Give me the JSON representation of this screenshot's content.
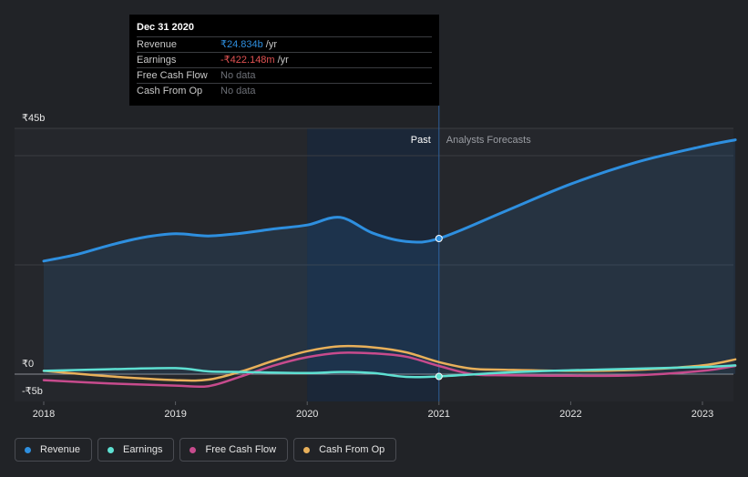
{
  "chart_data": {
    "type": "line",
    "title": "",
    "xlabel": "",
    "ylabel": "",
    "ylim": [
      -5,
      45
    ],
    "xlim": [
      2018,
      2023.25
    ],
    "x_ticks": [
      {
        "value": 2018,
        "label": "2018"
      },
      {
        "value": 2019,
        "label": "2019"
      },
      {
        "value": 2020,
        "label": "2020"
      },
      {
        "value": 2021,
        "label": "2021"
      },
      {
        "value": 2022,
        "label": "2022"
      },
      {
        "value": 2023,
        "label": "2023"
      }
    ],
    "y_ticks": [
      {
        "value": 45,
        "label": "₹45b"
      },
      {
        "value": 0,
        "label": "₹0"
      },
      {
        "value": -5,
        "label": "-₹5b"
      }
    ],
    "past_label": "Past",
    "forecast_label": "Analysts Forecasts",
    "divider_x": 2021,
    "highlight_start": 2020,
    "series": [
      {
        "name": "Revenue",
        "color": "#2e8fdf",
        "x": [
          2018,
          2018.25,
          2018.5,
          2018.75,
          2019,
          2019.25,
          2019.5,
          2019.75,
          2020,
          2020.25,
          2020.5,
          2020.75,
          2021,
          2021.5,
          2022,
          2022.5,
          2023,
          2023.25
        ],
        "values": [
          20.7,
          21.9,
          23.6,
          25.0,
          25.7,
          25.3,
          25.8,
          26.6,
          27.3,
          28.7,
          25.8,
          24.3,
          24.834,
          29.8,
          34.8,
          38.8,
          41.7,
          42.9
        ]
      },
      {
        "name": "Earnings",
        "color": "#5ee0d2",
        "x": [
          2018,
          2018.5,
          2019,
          2019.25,
          2019.5,
          2020,
          2020.25,
          2020.5,
          2020.75,
          2021,
          2021.5,
          2022,
          2022.5,
          2023,
          2023.25
        ],
        "values": [
          0.6,
          0.9,
          1.1,
          0.5,
          0.4,
          0.2,
          0.4,
          0.2,
          -0.5,
          -0.422,
          0.3,
          0.7,
          1.0,
          1.3,
          1.6
        ]
      },
      {
        "name": "Free Cash Flow",
        "color": "#c74b8d",
        "x": [
          2018,
          2018.5,
          2019,
          2019.25,
          2019.5,
          2019.75,
          2020,
          2020.25,
          2020.5,
          2020.75,
          2021,
          2021.25,
          2021.5,
          2022,
          2022.5,
          2023,
          2023.25
        ],
        "values": [
          -1.1,
          -1.7,
          -2.1,
          -2.2,
          -0.4,
          1.6,
          3.1,
          3.9,
          3.8,
          3.2,
          1.5,
          0.0,
          -0.2,
          -0.3,
          -0.2,
          0.6,
          1.5
        ]
      },
      {
        "name": "Cash From Op",
        "color": "#e8b05a",
        "x": [
          2018,
          2018.5,
          2019,
          2019.25,
          2019.5,
          2019.75,
          2020,
          2020.25,
          2020.5,
          2020.75,
          2021,
          2021.25,
          2021.5,
          2022,
          2022.5,
          2023,
          2023.25
        ],
        "values": [
          0.6,
          -0.4,
          -1.1,
          -1.0,
          0.5,
          2.5,
          4.2,
          5.1,
          4.9,
          4.0,
          2.2,
          1.0,
          0.8,
          0.6,
          0.8,
          1.6,
          2.7
        ]
      }
    ],
    "markers": [
      {
        "series": "Revenue",
        "x": 2021,
        "y": 24.834
      },
      {
        "series": "Earnings",
        "x": 2021,
        "y": -0.422
      }
    ]
  },
  "tooltip": {
    "date": "Dec 31 2020",
    "rows": [
      {
        "label": "Revenue",
        "value": "₹24.834b",
        "unit": "/yr",
        "color": "#2e8fdf"
      },
      {
        "label": "Earnings",
        "value": "-₹422.148m",
        "unit": "/yr",
        "color": "#e05252"
      },
      {
        "label": "Free Cash Flow",
        "value": "No data",
        "unit": "",
        "color": "#6d7077"
      },
      {
        "label": "Cash From Op",
        "value": "No data",
        "unit": "",
        "color": "#6d7077"
      }
    ]
  },
  "legend": [
    {
      "label": "Revenue",
      "color": "#2e8fdf"
    },
    {
      "label": "Earnings",
      "color": "#5ee0d2"
    },
    {
      "label": "Free Cash Flow",
      "color": "#c74b8d"
    },
    {
      "label": "Cash From Op",
      "color": "#e8b05a"
    }
  ]
}
